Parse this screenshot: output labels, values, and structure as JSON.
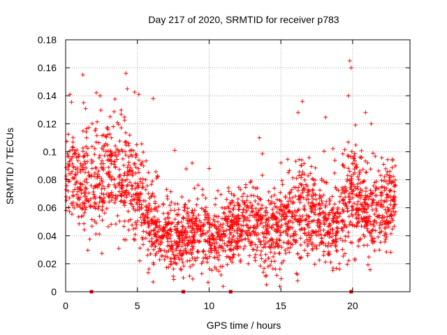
{
  "chart_data": {
    "type": "scatter",
    "title": "Day 217 of 2020, SRMTID for receiver p783",
    "xlabel": "GPS time / hours",
    "ylabel": "SRMTID / TECUs",
    "xlim": [
      0,
      24
    ],
    "ylim": [
      0,
      0.18
    ],
    "xticks": [
      0,
      5,
      10,
      15,
      20
    ],
    "xtick_labels": [
      "0",
      "5",
      "10",
      "15",
      "20"
    ],
    "yticks": [
      0,
      0.02,
      0.04,
      0.06,
      0.08,
      0.1,
      0.12,
      0.14,
      0.16,
      0.18
    ],
    "ytick_labels": [
      "0",
      "0.02",
      "0.04",
      "0.06",
      "0.08",
      "0.1",
      "0.12",
      "0.14",
      "0.16",
      "0.18"
    ],
    "grid": true,
    "marker": "+",
    "color": "#ff0000",
    "trend_hours": [
      0,
      0.5,
      1,
      1.5,
      2,
      2.5,
      3,
      3.5,
      4,
      4.5,
      5,
      5.5,
      6,
      6.5,
      7,
      7.5,
      8,
      8.5,
      9,
      9.5,
      10,
      10.5,
      11,
      11.5,
      12,
      12.5,
      13,
      13.5,
      14,
      14.5,
      15,
      15.5,
      16,
      16.5,
      17,
      17.5,
      18,
      18.5,
      19,
      19.5,
      20,
      20.5,
      21,
      21.5,
      22,
      22.5,
      23
    ],
    "trend_values": [
      0.078,
      0.085,
      0.082,
      0.08,
      0.076,
      0.078,
      0.082,
      0.08,
      0.083,
      0.078,
      0.07,
      0.06,
      0.05,
      0.045,
      0.04,
      0.038,
      0.038,
      0.04,
      0.042,
      0.04,
      0.038,
      0.036,
      0.04,
      0.042,
      0.045,
      0.048,
      0.05,
      0.048,
      0.04,
      0.042,
      0.045,
      0.05,
      0.052,
      0.055,
      0.058,
      0.055,
      0.05,
      0.045,
      0.05,
      0.06,
      0.07,
      0.065,
      0.058,
      0.055,
      0.06,
      0.062,
      0.065
    ],
    "spread_values": [
      0.018,
      0.02,
      0.022,
      0.02,
      0.018,
      0.02,
      0.022,
      0.02,
      0.022,
      0.02,
      0.018,
      0.016,
      0.014,
      0.013,
      0.012,
      0.012,
      0.012,
      0.013,
      0.013,
      0.012,
      0.012,
      0.012,
      0.013,
      0.013,
      0.013,
      0.014,
      0.014,
      0.014,
      0.013,
      0.013,
      0.014,
      0.015,
      0.016,
      0.017,
      0.016,
      0.015,
      0.015,
      0.014,
      0.016,
      0.02,
      0.02,
      0.018,
      0.016,
      0.015,
      0.016,
      0.016,
      0.016
    ],
    "peaks": [
      {
        "hour": 0.3,
        "value": 0.141
      },
      {
        "hour": 1.2,
        "value": 0.155
      },
      {
        "hour": 1.25,
        "value": 0.135
      },
      {
        "hour": 2.4,
        "value": 0.14
      },
      {
        "hour": 3.1,
        "value": 0.125
      },
      {
        "hour": 4.2,
        "value": 0.156
      },
      {
        "hour": 4.3,
        "value": 0.145
      },
      {
        "hour": 5.1,
        "value": 0.141
      },
      {
        "hour": 6.1,
        "value": 0.138
      },
      {
        "hour": 16.2,
        "value": 0.128
      },
      {
        "hour": 16.5,
        "value": 0.136
      },
      {
        "hour": 19.8,
        "value": 0.165
      },
      {
        "hour": 19.9,
        "value": 0.16
      },
      {
        "hour": 19.7,
        "value": 0.14
      },
      {
        "hour": 20.9,
        "value": 0.128
      },
      {
        "hour": 21.3,
        "value": 0.12
      },
      {
        "hour": 13.5,
        "value": 0.11
      },
      {
        "hour": 10.0,
        "value": 0.088
      },
      {
        "hour": 7.6,
        "value": 0.101
      },
      {
        "hour": 14.0,
        "value": 0.005
      }
    ],
    "zero_markers": [
      1.8,
      8.2,
      11.5,
      19.9
    ],
    "n_points": 2400,
    "seed": 217
  }
}
